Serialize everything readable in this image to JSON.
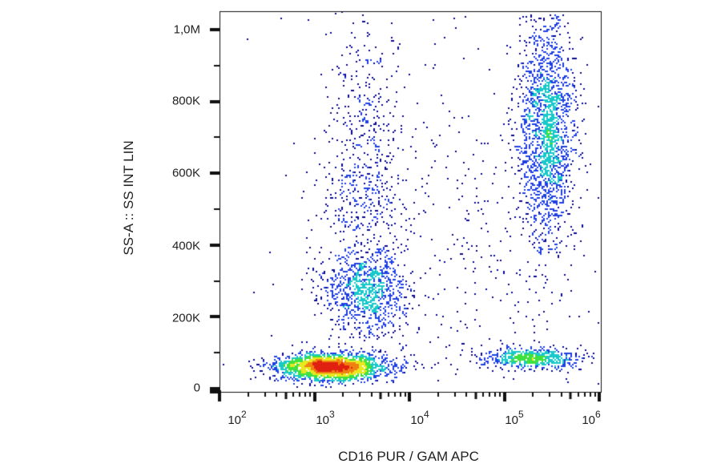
{
  "chart_data": {
    "type": "scatter",
    "subtype": "flow-cytometry-density-dot-plot",
    "title": "",
    "xlabel": "CD16 PUR / GAM APC",
    "ylabel": "SS-A :: SS INT LIN",
    "x_scale": "log",
    "xlim": [
      100,
      1000000
    ],
    "ylim": [
      0,
      1050000
    ],
    "x_tick_labels": [
      {
        "base": "10",
        "exp": "2",
        "value": 100
      },
      {
        "base": "10",
        "exp": "3",
        "value": 1000
      },
      {
        "base": "10",
        "exp": "4",
        "value": 10000
      },
      {
        "base": "10",
        "exp": "5",
        "value": 100000
      },
      {
        "base": "10",
        "exp": "6",
        "value": 1000000
      }
    ],
    "y_tick_labels": [
      {
        "label": "1,0M",
        "value": 1000000
      },
      {
        "label": "800K",
        "value": 800000
      },
      {
        "label": "600K",
        "value": 600000
      },
      {
        "label": "400K",
        "value": 400000
      },
      {
        "label": "200K",
        "value": 200000
      },
      {
        "label": "0",
        "value": 0
      }
    ],
    "grid": false,
    "legend": "none",
    "color_scale": [
      "#0a0a8c",
      "#1f3fe0",
      "#19c8c8",
      "#40e040",
      "#e8e820",
      "#f08010",
      "#e02010"
    ],
    "populations": [
      {
        "name": "CD16-negative low-SS (lymphocytes)",
        "x_center": 1500,
        "y_center": 60000,
        "x_log_spread": 0.28,
        "y_spread": 18000,
        "n": 2600,
        "peak_density": "red"
      },
      {
        "name": "CD16-dim intermediate-SS (monocytes)",
        "x_center": 3500,
        "y_center": 270000,
        "x_log_spread": 0.22,
        "y_spread": 55000,
        "n": 900,
        "peak_density": "green"
      },
      {
        "name": "CD16-dim vertical smear",
        "x_center": 3200,
        "y_center": 600000,
        "x_log_spread": 0.2,
        "y_spread": 220000,
        "n": 650,
        "peak_density": "blue"
      },
      {
        "name": "CD16-bright high-SS (neutrophils)",
        "x_center": 280000,
        "y_center": 730000,
        "x_log_spread": 0.15,
        "y_spread": 160000,
        "n": 1900,
        "peak_density": "green"
      },
      {
        "name": "CD16-bright low-SS (NK cells)",
        "x_center": 200000,
        "y_center": 85000,
        "x_log_spread": 0.25,
        "y_spread": 14000,
        "n": 600,
        "peak_density": "green"
      },
      {
        "name": "Scattered background events",
        "x_center": 30000,
        "y_center": 400000,
        "x_log_spread": 0.8,
        "y_spread": 300000,
        "n": 500,
        "peak_density": "blue"
      }
    ]
  }
}
